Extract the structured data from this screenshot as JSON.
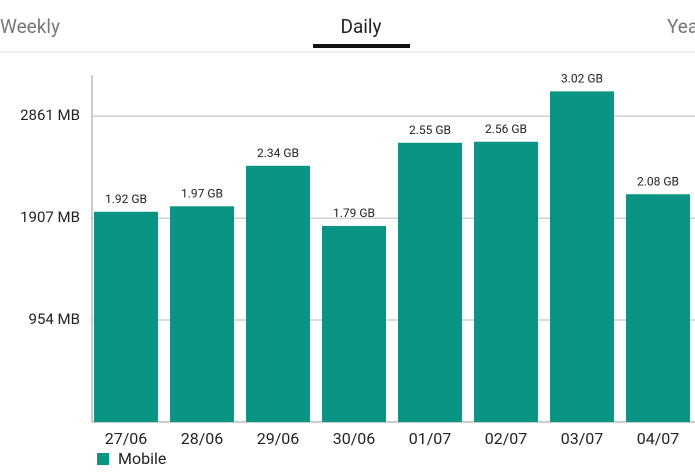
{
  "tabs": [
    "Weekly",
    "Daily",
    "Yearly"
  ],
  "chart_data": {
    "type": "bar",
    "categories": [
      "27/06",
      "28/06",
      "29/06",
      "30/06",
      "01/07",
      "02/07",
      "03/07",
      "04/07"
    ],
    "series": [
      {
        "name": "Mobile",
        "color": "#0a9484",
        "values": [
          1966,
          2017,
          2396,
          1833,
          2611,
          2621,
          3092,
          2130
        ],
        "value_labels": [
          "1.92 GB",
          "1.97 GB",
          "2.34 GB",
          "1.79 GB",
          "2.55 GB",
          "2.56 GB",
          "3.02 GB",
          "2.08 GB"
        ]
      }
    ],
    "ylim": [
      0,
      3245
    ],
    "yticks": [
      {
        "value": 954,
        "label": "954 MB"
      },
      {
        "value": 1907,
        "label": "1907 MB"
      },
      {
        "value": 2861,
        "label": "2861 MB"
      }
    ],
    "grid": true,
    "legend": "bottom-left"
  }
}
